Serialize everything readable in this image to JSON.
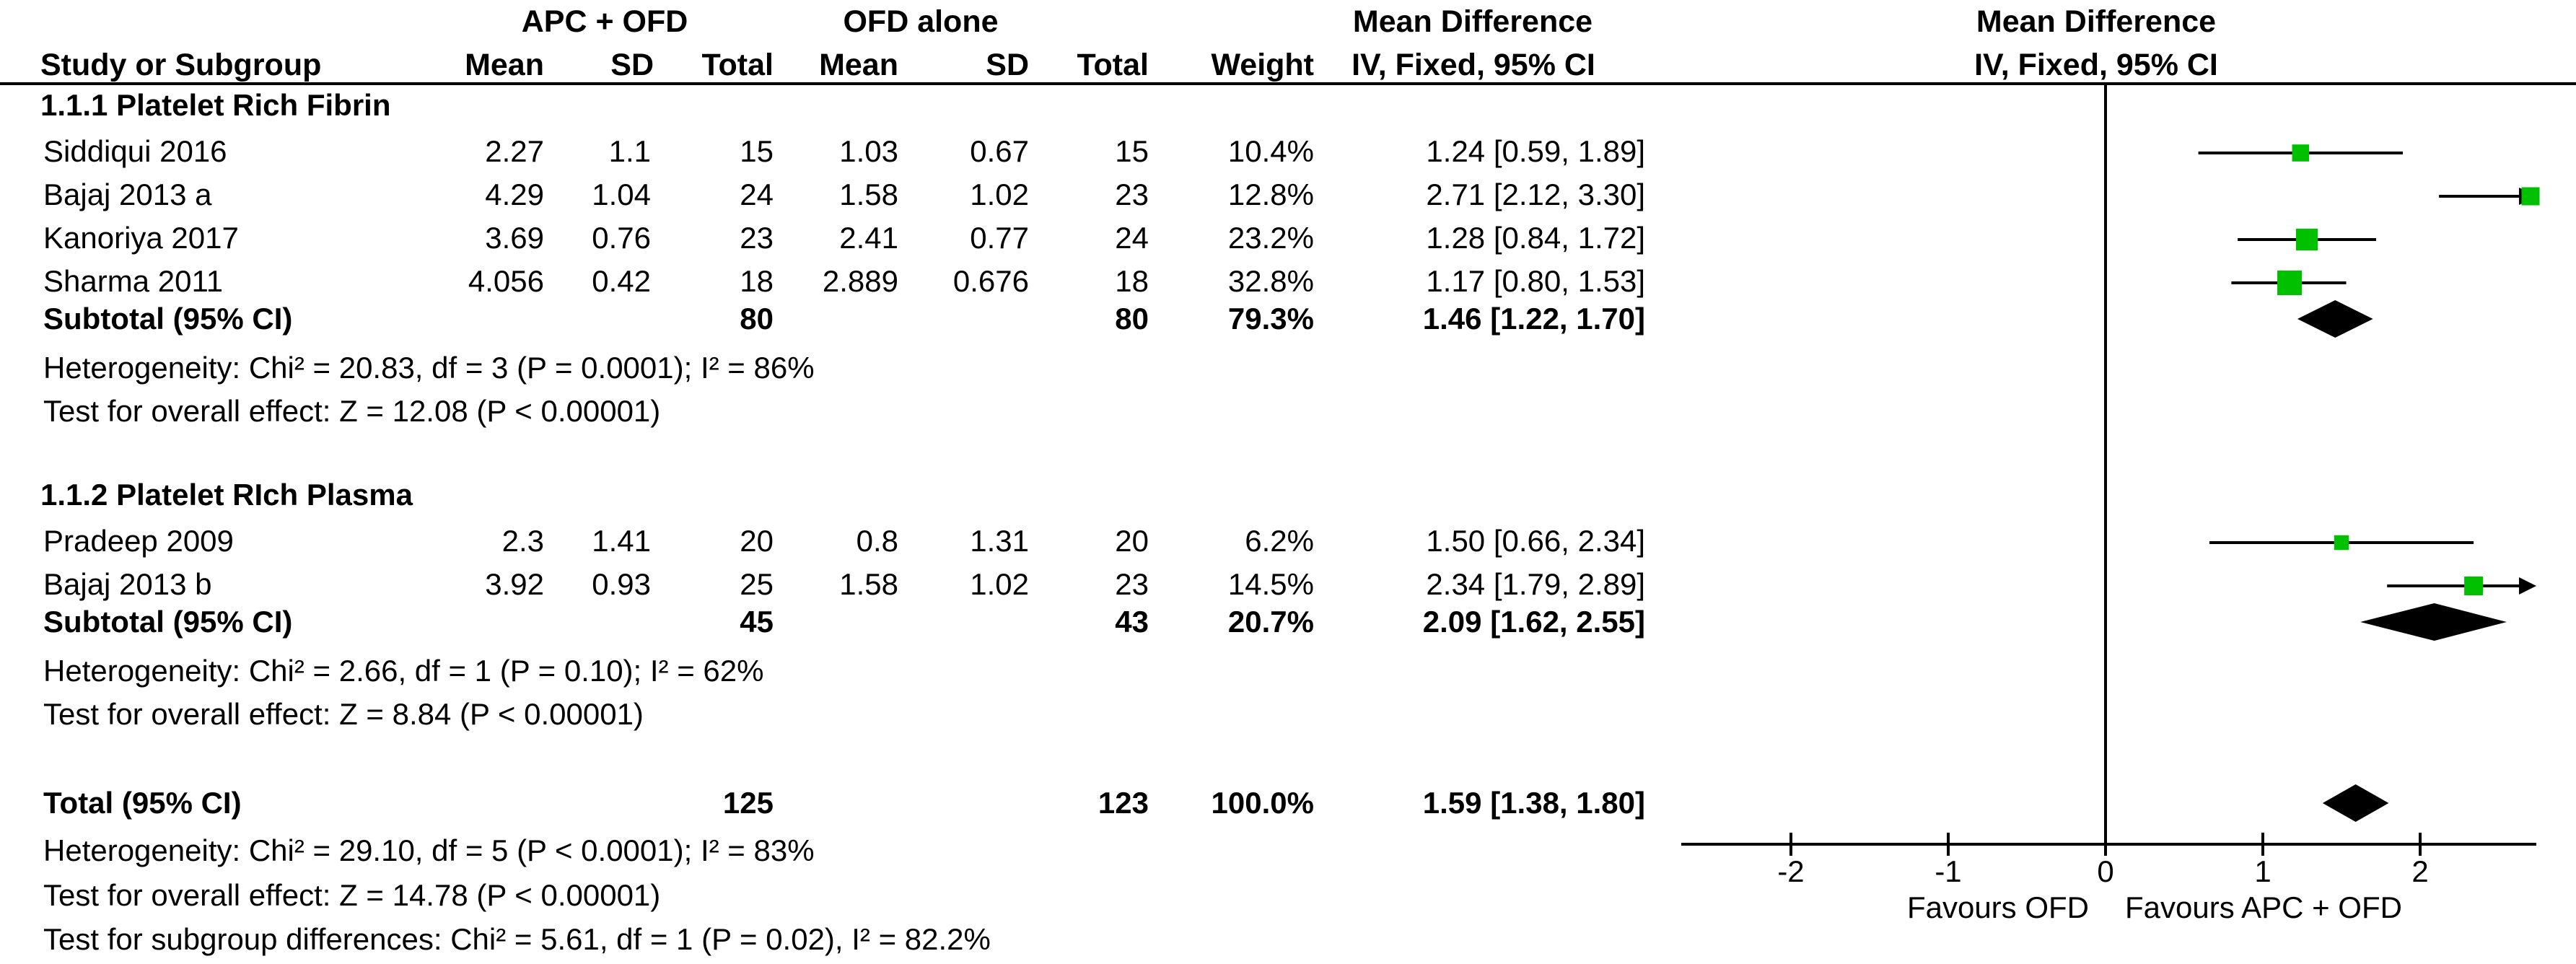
{
  "headers": {
    "group1": "APC + OFD",
    "group2": "OFD alone",
    "md_text": "Mean Difference",
    "md_plot": "Mean Difference",
    "study_col": "Study or Subgroup",
    "mean": "Mean",
    "sd": "SD",
    "total": "Total",
    "weight": "Weight",
    "method_text": "IV, Fixed, 95% CI",
    "method_plot": "IV, Fixed, 95% CI"
  },
  "subgroups": [
    {
      "title": "1.1.1 Platelet Rich Fibrin",
      "studies": [
        {
          "name": "Siddiqui 2016",
          "m1": "2.27",
          "sd1": "1.1",
          "n1": "15",
          "m2": "1.03",
          "sd2": "0.67",
          "n2": "15",
          "weight": "10.4%",
          "ci_text": "1.24 [0.59, 1.89]",
          "md": 1.24,
          "lo": 0.59,
          "hi": 1.89,
          "w": 10.4
        },
        {
          "name": "Bajaj 2013 a",
          "m1": "4.29",
          "sd1": "1.04",
          "n1": "24",
          "m2": "1.58",
          "sd2": "1.02",
          "n2": "23",
          "weight": "12.8%",
          "ci_text": "2.71 [2.12, 3.30]",
          "md": 2.71,
          "lo": 2.12,
          "hi": 3.3,
          "w": 12.8
        },
        {
          "name": "Kanoriya 2017",
          "m1": "3.69",
          "sd1": "0.76",
          "n1": "23",
          "m2": "2.41",
          "sd2": "0.77",
          "n2": "24",
          "weight": "23.2%",
          "ci_text": "1.28 [0.84, 1.72]",
          "md": 1.28,
          "lo": 0.84,
          "hi": 1.72,
          "w": 23.2
        },
        {
          "name": "Sharma 2011",
          "m1": "4.056",
          "sd1": "0.42",
          "n1": "18",
          "m2": "2.889",
          "sd2": "0.676",
          "n2": "18",
          "weight": "32.8%",
          "ci_text": "1.17 [0.80, 1.53]",
          "md": 1.17,
          "lo": 0.8,
          "hi": 1.53,
          "w": 32.8
        }
      ],
      "subtotal": {
        "label": "Subtotal (95% CI)",
        "n1": "80",
        "n2": "80",
        "weight": "79.3%",
        "ci_text": "1.46 [1.22, 1.70]",
        "md": 1.46,
        "lo": 1.22,
        "hi": 1.7
      },
      "heterogeneity": "Heterogeneity: Chi² = 20.83, df = 3 (P = 0.0001); I² = 86%",
      "overall": "Test for overall effect: Z = 12.08 (P < 0.00001)"
    },
    {
      "title": "1.1.2 Platelet RIch Plasma",
      "studies": [
        {
          "name": "Pradeep 2009",
          "m1": "2.3",
          "sd1": "1.41",
          "n1": "20",
          "m2": "0.8",
          "sd2": "1.31",
          "n2": "20",
          "weight": "6.2%",
          "ci_text": "1.50 [0.66, 2.34]",
          "md": 1.5,
          "lo": 0.66,
          "hi": 2.34,
          "w": 6.2
        },
        {
          "name": "Bajaj  2013 b",
          "m1": "3.92",
          "sd1": "0.93",
          "n1": "25",
          "m2": "1.58",
          "sd2": "1.02",
          "n2": "23",
          "weight": "14.5%",
          "ci_text": "2.34 [1.79, 2.89]",
          "md": 2.34,
          "lo": 1.79,
          "hi": 2.89,
          "w": 14.5
        }
      ],
      "subtotal": {
        "label": "Subtotal (95% CI)",
        "n1": "45",
        "n2": "43",
        "weight": "20.7%",
        "ci_text": "2.09 [1.62, 2.55]",
        "md": 2.09,
        "lo": 1.62,
        "hi": 2.55
      },
      "heterogeneity": "Heterogeneity: Chi² = 2.66, df = 1 (P = 0.10); I² = 62%",
      "overall": "Test for overall effect: Z = 8.84 (P < 0.00001)"
    }
  ],
  "total": {
    "label": "Total (95% CI)",
    "n1": "125",
    "n2": "123",
    "weight": "100.0%",
    "ci_text": "1.59 [1.38, 1.80]",
    "md": 1.59,
    "lo": 1.38,
    "hi": 1.8
  },
  "footer": {
    "heterogeneity": "Heterogeneity: Chi² = 29.10, df = 5 (P < 0.0001); I² = 83%",
    "overall": "Test for overall effect: Z = 14.78 (P < 0.00001)",
    "subgroup": "Test for subgroup differences: Chi² = 5.61, df = 1 (P = 0.02), I² = 82.2%"
  },
  "axis": {
    "ticks": [
      -2,
      -1,
      0,
      1,
      2
    ],
    "tick_labels": [
      "-2",
      "-1",
      "0",
      "1",
      "2"
    ],
    "xlim": [
      -2.7,
      2.7
    ],
    "favours_left": "Favours OFD",
    "favours_right": "Favours APC + OFD"
  },
  "colors": {
    "square": "#00c000",
    "text": "#000000"
  },
  "chart_data": {
    "type": "forest",
    "x": [
      "Siddiqui 2016",
      "Bajaj 2013 a",
      "Kanoriya 2017",
      "Sharma 2011",
      "Pradeep 2009",
      "Bajaj  2013 b"
    ],
    "values": [
      1.24,
      2.71,
      1.28,
      1.17,
      1.5,
      2.34
    ],
    "ci_lower": [
      0.59,
      2.12,
      0.84,
      0.8,
      0.66,
      1.79
    ],
    "ci_upper": [
      1.89,
      3.3,
      1.72,
      1.53,
      2.34,
      2.89
    ],
    "weights": [
      10.4,
      12.8,
      23.2,
      32.8,
      6.2,
      14.5
    ],
    "pooled": [
      {
        "name": "Subtotal (95% CI)",
        "md": 1.46,
        "lo": 1.22,
        "hi": 1.7
      },
      {
        "name": "Subtotal (95% CI)",
        "md": 2.09,
        "lo": 1.62,
        "hi": 2.55
      },
      {
        "name": "Total (95% CI)",
        "md": 1.59,
        "lo": 1.38,
        "hi": 1.8
      }
    ],
    "xlim": [
      -2.7,
      2.7
    ],
    "xlabel": "Mean Difference"
  }
}
